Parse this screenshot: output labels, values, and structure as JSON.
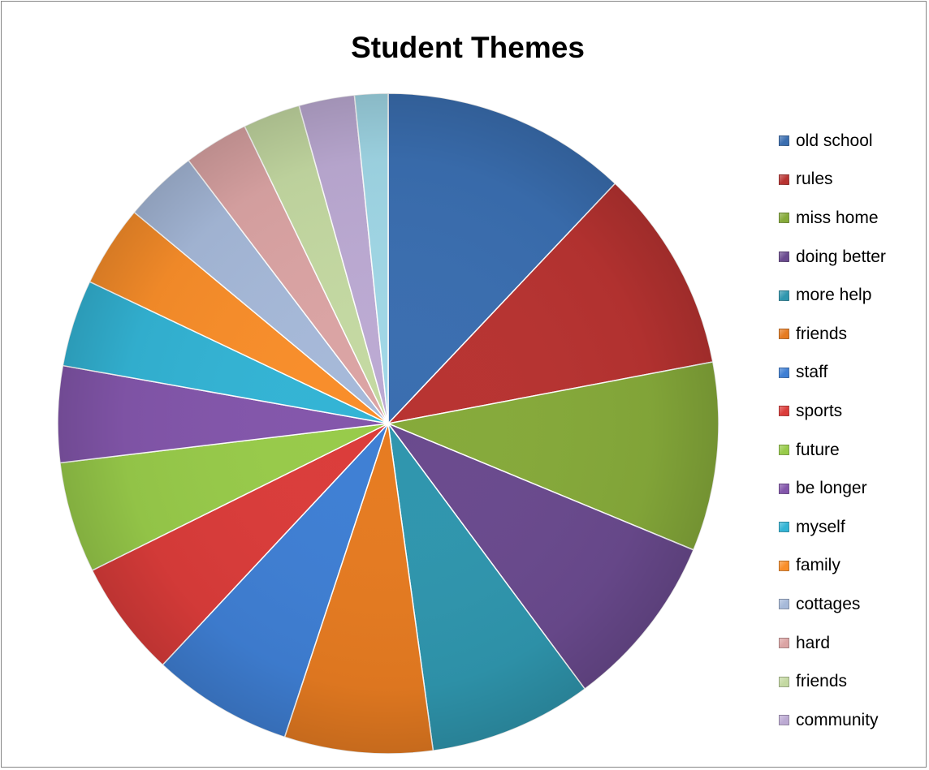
{
  "chart_data": {
    "type": "pie",
    "title": "Student Themes",
    "legend_position": "right",
    "slices": [
      {
        "label": "old school",
        "value": 13.3,
        "color": "#3a6eb0"
      },
      {
        "label": "rules",
        "value": 11.0,
        "color": "#b83331"
      },
      {
        "label": "miss home",
        "value": 10.2,
        "color": "#86aa3a"
      },
      {
        "label": "doing better",
        "value": 9.5,
        "color": "#6a4a8e"
      },
      {
        "label": "more help",
        "value": 8.8,
        "color": "#2f96ae"
      },
      {
        "label": "friends",
        "value": 8.0,
        "color": "#e67b21"
      },
      {
        "label": "staff",
        "value": 7.6,
        "color": "#3f7fd4"
      },
      {
        "label": "sports",
        "value": 6.3,
        "color": "#db3c3a"
      },
      {
        "label": "future",
        "value": 6.0,
        "color": "#98cb4a"
      },
      {
        "label": "be longer",
        "value": 5.2,
        "color": "#8356ab"
      },
      {
        "label": "myself",
        "value": 4.7,
        "color": "#33b4d5"
      },
      {
        "label": "family",
        "value": 4.4,
        "color": "#f98e2a"
      },
      {
        "label": "cottages",
        "value": 4.0,
        "color": "#a6b9d9"
      },
      {
        "label": "hard",
        "value": 3.5,
        "color": "#dba4a4"
      },
      {
        "label": "friends",
        "value": 3.1,
        "color": "#c4d9a2"
      },
      {
        "label": "community",
        "value": 3.0,
        "color": "#bcaad3"
      },
      {
        "label": "",
        "value": 1.8,
        "color": "#a0d7e6"
      }
    ],
    "legend_count": 16
  }
}
